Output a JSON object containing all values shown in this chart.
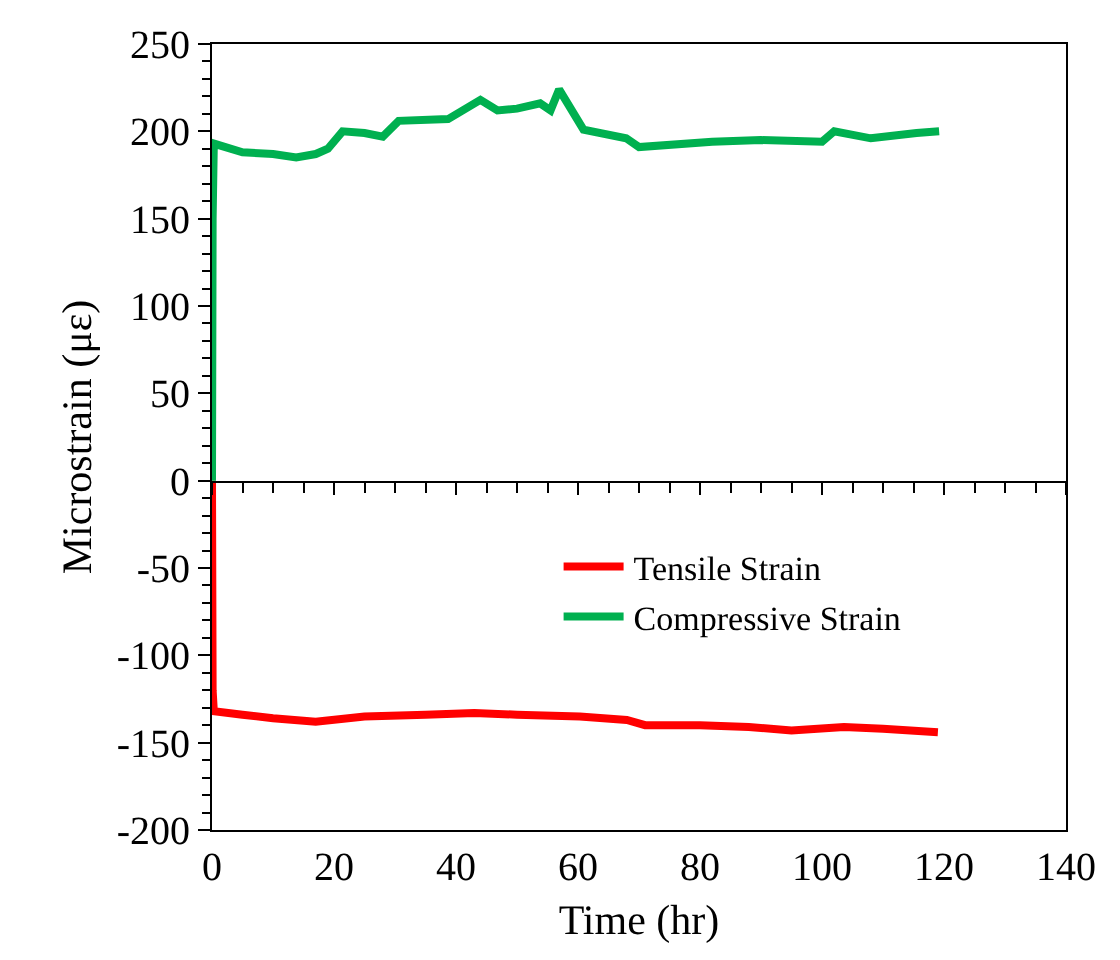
{
  "chart_data": {
    "type": "line",
    "xlabel": "Time (hr)",
    "ylabel": "Microstrain (με)",
    "xlim": [
      0,
      140
    ],
    "xticks": [
      0,
      20,
      40,
      60,
      80,
      100,
      120,
      140
    ],
    "ylim": [
      -200,
      250
    ],
    "yticks": [
      -200,
      -150,
      -100,
      -50,
      0,
      50,
      100,
      150,
      200,
      250
    ],
    "legend": "right",
    "marker": "none",
    "series": [
      {
        "name": "Tensile Strain",
        "color": "#ff0000",
        "x": [
          0,
          0.1,
          0.3,
          5,
          10,
          17,
          25,
          35,
          43,
          50,
          60.3,
          68,
          71,
          80,
          88,
          95,
          103.6,
          110,
          119
        ],
        "values": [
          0,
          -120,
          -132,
          -134,
          -136,
          -138,
          -135,
          -134,
          -133,
          -134,
          -135,
          -137,
          -140,
          -140,
          -141,
          -143,
          -141,
          -142,
          -144
        ]
      },
      {
        "name": "Compressive Strain",
        "color": "#00b050",
        "x": [
          0,
          0.1,
          0.3,
          5,
          10,
          13.8,
          17,
          19,
          21.4,
          25,
          28,
          30.6,
          38.7,
          44,
          46.8,
          50,
          53.8,
          55.5,
          56.9,
          60.9,
          67.9,
          70,
          82,
          90,
          100,
          102,
          108,
          115.5,
          119.2
        ],
        "values": [
          0,
          150,
          193,
          188,
          187,
          185,
          187,
          190,
          200,
          199,
          197,
          206,
          207,
          218,
          212,
          213,
          216,
          212,
          224,
          201,
          196,
          191,
          194,
          195,
          194,
          200,
          196,
          199,
          200
        ]
      }
    ]
  }
}
